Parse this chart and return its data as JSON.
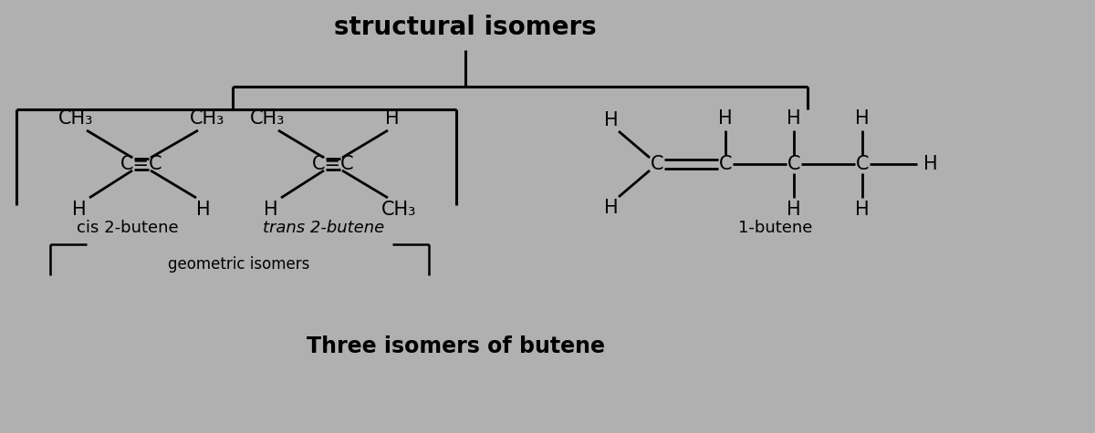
{
  "title": "structural isomers",
  "subtitle": "Three isomers of butene",
  "bg_color": "#b0b0b0",
  "text_color": "#000000",
  "title_fontsize": 20,
  "subtitle_fontsize": 17,
  "molecule_fontsize": 15,
  "label_fontsize": 13,
  "geo_label_fontsize": 12,
  "cis_label": "cis 2-butene",
  "trans_label": "trans 2-butene",
  "one_butene_label": "1-butene",
  "geo_label": "geometric isomers"
}
